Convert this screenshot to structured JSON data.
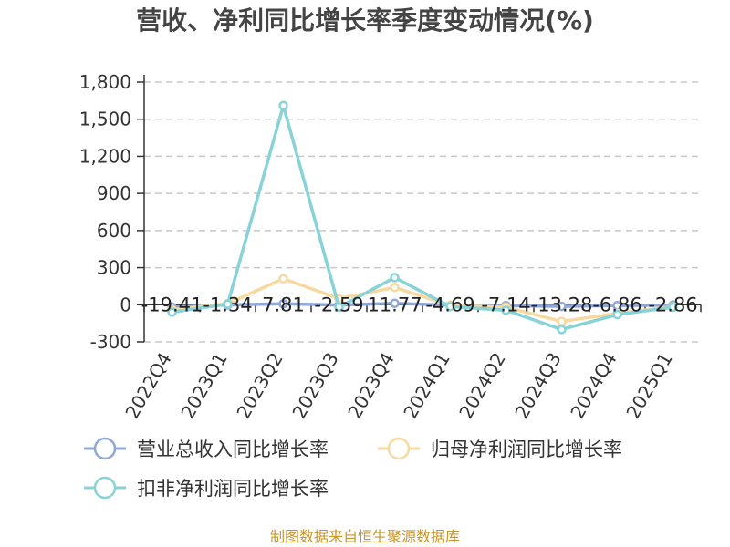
{
  "chart_data": {
    "type": "line",
    "title": "营收、净利同比增长率季度变动情况(%)",
    "categories": [
      "2022Q4",
      "2023Q1",
      "2023Q2",
      "2023Q3",
      "2023Q4",
      "2024Q1",
      "2024Q2",
      "2024Q3",
      "2024Q4",
      "2025Q1"
    ],
    "series": [
      {
        "name": "营业总收入同比增长率",
        "color": "#8fa8d8",
        "values": [
          -19.41,
          -1.34,
          7.81,
          -2.59,
          11.77,
          -4.69,
          -7.14,
          -13.28,
          -6.86,
          -2.86
        ]
      },
      {
        "name": "归母净利润同比增长率",
        "color": "#f7d9a0",
        "values": [
          -40,
          10,
          210,
          50,
          140,
          -5,
          -20,
          -135,
          -70,
          -15
        ]
      },
      {
        "name": "扣非净利润同比增长率",
        "color": "#88d3d7",
        "values": [
          -60,
          5,
          1610,
          -20,
          220,
          -15,
          -45,
          -200,
          -80,
          -20
        ]
      }
    ],
    "data_labels": [
      "-19.41",
      "-1.34",
      "7.81",
      "-2.59",
      "11.77",
      "-4.69",
      "-7.14",
      "-13.28",
      "-6.86",
      "-2.86"
    ],
    "yticks": [
      "1,800",
      "1,500",
      "1,200",
      "900",
      "600",
      "300",
      "0",
      "-300"
    ],
    "ylim": [
      -300,
      1800
    ],
    "grid": true,
    "legend_position": "bottom"
  },
  "source": "制图数据来自恒生聚源数据库"
}
